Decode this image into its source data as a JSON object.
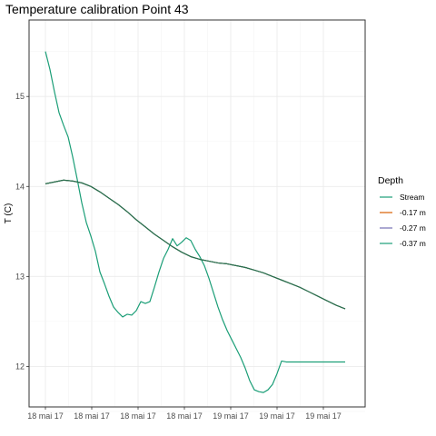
{
  "chart_data": {
    "type": "line",
    "title": "Temperature calibration Point 43",
    "xlabel": "",
    "ylabel": "T (C)",
    "x_ticks": [
      "18 mai 17",
      "18 mai 17",
      "18 mai 17",
      "18 mai 17",
      "19 mai 17",
      "19 mai 17",
      "19 mai 17"
    ],
    "x_range": [
      0,
      34
    ],
    "ylim": [
      11.55,
      15.85
    ],
    "y_ticks": [
      12,
      13,
      14,
      15
    ],
    "grid": true,
    "legend": {
      "title": "Depth",
      "position": "right",
      "entries": [
        {
          "label": "Stream",
          "color": "#1b9e77"
        },
        {
          "label": "-0.17 m",
          "color": "#d95f02"
        },
        {
          "label": "-0.27 m",
          "color": "#7570b3"
        },
        {
          "label": "-0.37 m",
          "color": "#1b9e77"
        }
      ]
    },
    "series": [
      {
        "name": "Stream",
        "color": "#1b9e77",
        "x": [
          0,
          0.5,
          1,
          1.5,
          2,
          2.5,
          3,
          3.5,
          4,
          4.5,
          5,
          5.5,
          6,
          6.5,
          7,
          7.5,
          8,
          8.5,
          9,
          9.5,
          10,
          10.5,
          11,
          11.5,
          12,
          12.5,
          13,
          13.5,
          14,
          14.5,
          15,
          15.5,
          16,
          16.5,
          17,
          17.5,
          18,
          18.5,
          19,
          19.5,
          20,
          20.5,
          21,
          21.5,
          22,
          22.5,
          23,
          23.5,
          24,
          24.5,
          25,
          25.5,
          26,
          26.5,
          27,
          27.5,
          28,
          28.5,
          29,
          29.5,
          30,
          30.5,
          31,
          31.5,
          32,
          32.5,
          33
        ],
        "y": [
          15.5,
          15.3,
          15.05,
          14.82,
          14.68,
          14.55,
          14.33,
          14.08,
          13.82,
          13.6,
          13.45,
          13.28,
          13.05,
          12.92,
          12.78,
          12.66,
          12.6,
          12.55,
          12.58,
          12.57,
          12.62,
          12.72,
          12.7,
          12.72,
          12.88,
          13.05,
          13.2,
          13.3,
          13.42,
          13.34,
          13.38,
          13.43,
          13.4,
          13.3,
          13.22,
          13.12,
          12.98,
          12.82,
          12.66,
          12.52,
          12.4,
          12.3,
          12.2,
          12.1,
          11.98,
          11.84,
          11.74,
          11.72,
          11.71,
          11.74,
          11.8,
          11.92,
          12.06,
          12.05,
          12.05,
          12.05,
          12.05,
          12.05,
          12.05,
          12.05,
          12.05,
          12.05,
          12.05,
          12.05,
          12.05,
          12.05,
          12.05
        ]
      },
      {
        "name": "-0.17 m",
        "color": "#2d6e4e",
        "x": [
          0,
          1,
          2,
          3,
          4,
          5,
          6,
          7,
          8,
          9,
          10,
          11,
          12,
          13,
          14,
          15,
          16,
          17,
          18,
          19,
          20,
          21,
          22,
          23,
          24,
          25,
          26,
          27,
          28,
          29,
          30,
          31,
          32,
          33
        ],
        "y": [
          14.03,
          14.05,
          14.07,
          14.06,
          14.04,
          14.0,
          13.94,
          13.87,
          13.8,
          13.72,
          13.63,
          13.55,
          13.47,
          13.4,
          13.33,
          13.27,
          13.22,
          13.19,
          13.17,
          13.15,
          13.14,
          13.12,
          13.1,
          13.07,
          13.04,
          13.0,
          12.96,
          12.92,
          12.88,
          12.83,
          12.78,
          12.73,
          12.68,
          12.64
        ]
      },
      {
        "name": "-0.27 m",
        "color": "#2d6e4e",
        "x": [
          0,
          1,
          2,
          3,
          4,
          5,
          6,
          7,
          8,
          9,
          10,
          11,
          12,
          13,
          14,
          15,
          16,
          17,
          18,
          19,
          20,
          21,
          22,
          23,
          24,
          25,
          26,
          27,
          28,
          29,
          30,
          31,
          32,
          33
        ],
        "y": [
          14.03,
          14.05,
          14.07,
          14.06,
          14.04,
          14.0,
          13.94,
          13.87,
          13.8,
          13.72,
          13.63,
          13.55,
          13.47,
          13.4,
          13.33,
          13.27,
          13.22,
          13.19,
          13.17,
          13.15,
          13.14,
          13.12,
          13.1,
          13.07,
          13.04,
          13.0,
          12.96,
          12.92,
          12.88,
          12.83,
          12.78,
          12.73,
          12.68,
          12.64
        ]
      },
      {
        "name": "-0.37 m",
        "color": "#2d6e4e",
        "x": [
          0,
          1,
          2,
          3,
          4,
          5,
          6,
          7,
          8,
          9,
          10,
          11,
          12,
          13,
          14,
          15,
          16,
          17,
          18,
          19,
          20,
          21,
          22,
          23,
          24,
          25,
          26,
          27,
          28,
          29,
          30,
          31,
          32,
          33
        ],
        "y": [
          14.03,
          14.05,
          14.07,
          14.06,
          14.04,
          14.0,
          13.94,
          13.87,
          13.8,
          13.72,
          13.63,
          13.55,
          13.47,
          13.4,
          13.33,
          13.27,
          13.22,
          13.19,
          13.17,
          13.15,
          13.14,
          13.12,
          13.1,
          13.07,
          13.04,
          13.0,
          12.96,
          12.92,
          12.88,
          12.83,
          12.78,
          12.73,
          12.68,
          12.64
        ]
      }
    ]
  }
}
